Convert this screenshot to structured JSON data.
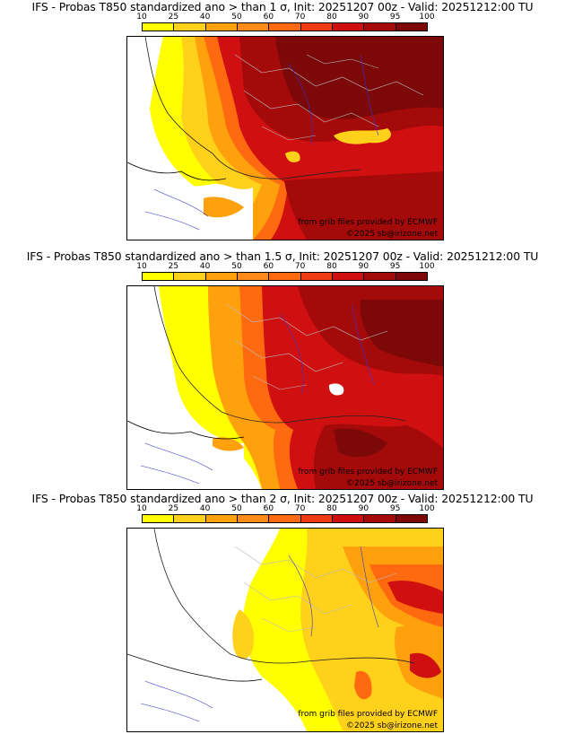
{
  "colorbar": {
    "ticks": [
      "10",
      "25",
      "40",
      "50",
      "60",
      "70",
      "80",
      "90",
      "95",
      "100"
    ],
    "colors": [
      "#ffff00",
      "#ffd11a",
      "#ffa10c",
      "#ff8a1a",
      "#ff6a10",
      "#f03c14",
      "#d01010",
      "#a40a0a",
      "#7c0808"
    ]
  },
  "panels": [
    {
      "title": "IFS - Probas T850  standardized ano > than 1 σ, Init: 20251207 00z - Valid: 20251212:00 TU",
      "credit_source": "from grib files provided by ECMWF",
      "credit_copyright": "©2025 sb@irizone.net"
    },
    {
      "title": "IFS - Probas T850  standardized ano > than 1.5 σ, Init: 20251207 00z - Valid: 20251212:00 TU",
      "credit_source": "from grib files provided by ECMWF",
      "credit_copyright": "©2025 sb@irizone.net"
    },
    {
      "title": "IFS - Probas T850  standardized ano > than 2 σ, Init: 20251207 00z - Valid: 20251212:00 TU",
      "credit_source": "from grib files provided by ECMWF",
      "credit_copyright": "©2025 sb@irizone.net"
    }
  ]
}
